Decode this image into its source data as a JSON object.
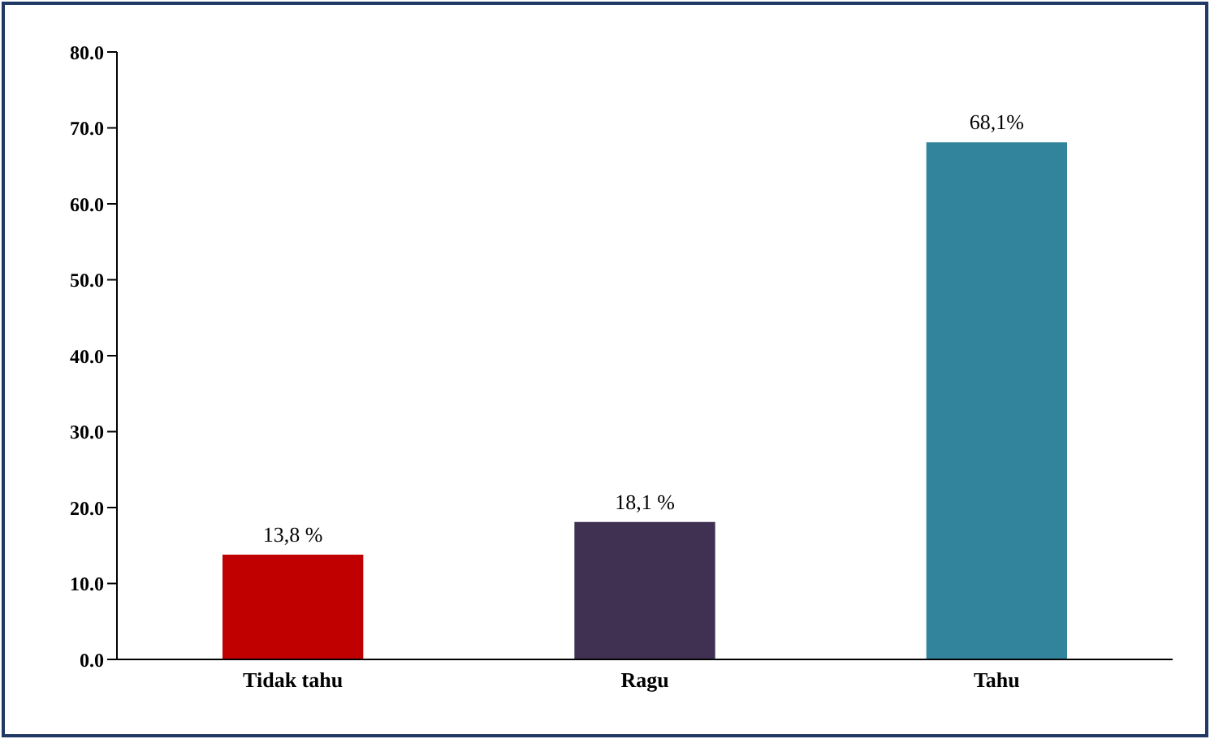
{
  "chart_data": {
    "type": "bar",
    "categories": [
      "Tidak tahu",
      "Ragu",
      "Tahu"
    ],
    "values": [
      13.8,
      18.1,
      68.1
    ],
    "colors": [
      "#c00000",
      "#403152",
      "#31849b"
    ],
    "value_labels": [
      "13,8 %",
      "18,1 %",
      "68,1%"
    ],
    "ylim": [
      0,
      80
    ],
    "yticks": [
      {
        "value": 0,
        "label": "0.0"
      },
      {
        "value": 10,
        "label": "10.0"
      },
      {
        "value": 20,
        "label": "20.0"
      },
      {
        "value": 30,
        "label": "30.0"
      },
      {
        "value": 40,
        "label": "40.0"
      },
      {
        "value": 50,
        "label": "50.0"
      },
      {
        "value": 60,
        "label": "60.0"
      },
      {
        "value": 70,
        "label": "70.0"
      },
      {
        "value": 80,
        "label": "80.0"
      }
    ],
    "grid": false,
    "legend": false
  }
}
